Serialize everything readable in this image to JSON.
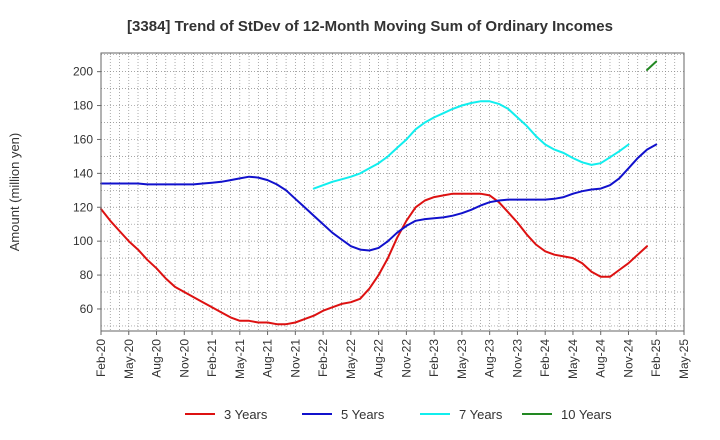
{
  "chart_data": {
    "type": "line",
    "title": "[3384]  Trend of StDev of 12-Month Moving Sum of Ordinary Incomes",
    "xlabel": "",
    "ylabel": "Amount (million yen)",
    "ylim": [
      47,
      211
    ],
    "yticks": [
      60,
      80,
      100,
      120,
      140,
      160,
      180,
      200
    ],
    "xtick_labels": [
      "Feb-20",
      "May-20",
      "Aug-20",
      "Nov-20",
      "Feb-21",
      "May-21",
      "Aug-21",
      "Nov-21",
      "Feb-22",
      "May-22",
      "Aug-22",
      "Nov-22",
      "Feb-23",
      "May-23",
      "Aug-23",
      "Nov-23",
      "Feb-24",
      "May-24",
      "Aug-24",
      "Nov-24",
      "Feb-25",
      "May-25"
    ],
    "grid": true,
    "legend_position": "bottom",
    "series": [
      {
        "name": "3 Years",
        "color": "#dd1111",
        "start_index": 0,
        "values": [
          119,
          112,
          106,
          100,
          95,
          89,
          84,
          78,
          73,
          70,
          67,
          64,
          61,
          58,
          55,
          53,
          53,
          52,
          52,
          51,
          51,
          52,
          54,
          56,
          59,
          61,
          63,
          64,
          66,
          72,
          80,
          90,
          102,
          112,
          120,
          124,
          126,
          127,
          128,
          128,
          128,
          128,
          127,
          123,
          117,
          111,
          104,
          98,
          94,
          92,
          91,
          90,
          87,
          82,
          79,
          79,
          83,
          87,
          92,
          97
        ]
      },
      {
        "name": "5 Years",
        "color": "#1111cc",
        "start_index": 0,
        "values": [
          134,
          134,
          134,
          134,
          134,
          133.5,
          133.5,
          133.5,
          133.5,
          133.5,
          133.5,
          134,
          134.5,
          135,
          136,
          137,
          138,
          137.5,
          136,
          133.5,
          130,
          125,
          120,
          115,
          110,
          105,
          101,
          97,
          95,
          94.5,
          96,
          100,
          105,
          109,
          112,
          113,
          113.5,
          114,
          115,
          116.5,
          118.5,
          121,
          123,
          124,
          124.5,
          124.5,
          124.5,
          124.5,
          124.5,
          125,
          126,
          128,
          129.5,
          130.5,
          131,
          133,
          137,
          143,
          149,
          154,
          157
        ]
      },
      {
        "name": "7 Years",
        "color": "#11eeee",
        "start_index": 23,
        "values": [
          131,
          133,
          135,
          136.5,
          138,
          140,
          143,
          146,
          150,
          155,
          160,
          166,
          170,
          173,
          175.5,
          178,
          180,
          181.5,
          182.5,
          182.5,
          181,
          178,
          173,
          168,
          162,
          157,
          154,
          152,
          149,
          146.5,
          145,
          146,
          149.5,
          153,
          157
        ]
      },
      {
        "name": "10 Years",
        "color": "#228822",
        "start_index": 59,
        "values": [
          201,
          206
        ]
      }
    ]
  }
}
